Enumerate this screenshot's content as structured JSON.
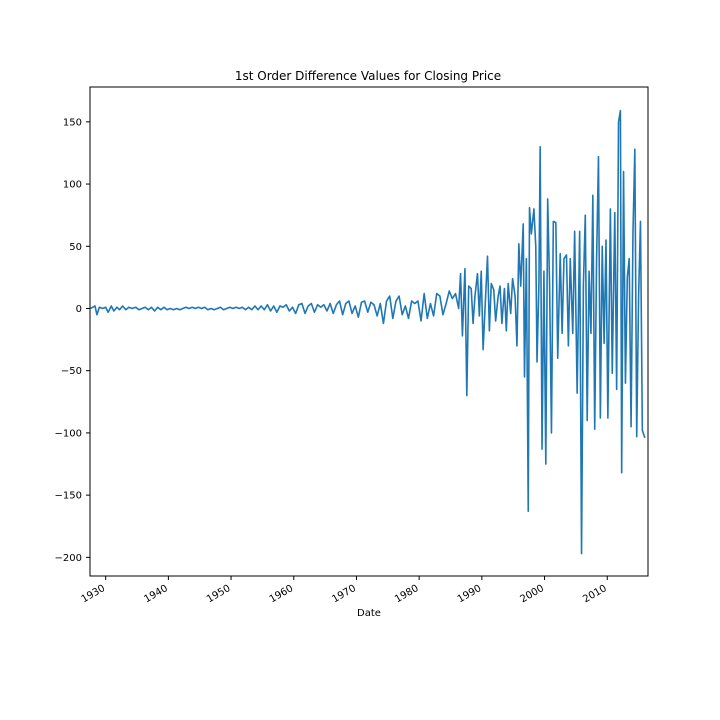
{
  "chart_data": {
    "type": "line",
    "title": "1st Order Difference Values for Closing Price",
    "xlabel": "Date",
    "ylabel": "",
    "xlim": [
      1927.5,
      2016.5
    ],
    "ylim": [
      -215,
      178
    ],
    "x_ticks": [
      1930,
      1940,
      1950,
      1960,
      1970,
      1980,
      1990,
      2000,
      2010
    ],
    "x_tick_labels": [
      "1930",
      "1940",
      "1950",
      "1960",
      "1970",
      "1980",
      "1990",
      "2000",
      "2010"
    ],
    "y_ticks": [
      150,
      100,
      50,
      0,
      -50,
      -100,
      -150,
      -200
    ],
    "y_tick_labels": [
      "150",
      "100",
      "50",
      "0",
      "−50",
      "−100",
      "−150",
      "−200"
    ],
    "grid": false,
    "color": "#1f77b4",
    "series": [
      {
        "name": "",
        "points": [
          [
            1927.6,
            0
          ],
          [
            1928.3,
            2
          ],
          [
            1928.6,
            -5
          ],
          [
            1929.0,
            1
          ],
          [
            1929.5,
            0
          ],
          [
            1930.0,
            1
          ],
          [
            1930.4,
            -3
          ],
          [
            1930.9,
            2
          ],
          [
            1931.3,
            -2
          ],
          [
            1931.8,
            1
          ],
          [
            1932.2,
            -1
          ],
          [
            1932.7,
            2
          ],
          [
            1933.2,
            -1
          ],
          [
            1933.7,
            1
          ],
          [
            1934.2,
            0
          ],
          [
            1934.8,
            1
          ],
          [
            1935.3,
            -1
          ],
          [
            1935.8,
            0
          ],
          [
            1936.3,
            1
          ],
          [
            1936.8,
            -1
          ],
          [
            1937.3,
            1
          ],
          [
            1937.8,
            -2
          ],
          [
            1938.3,
            1
          ],
          [
            1938.8,
            -1
          ],
          [
            1939.3,
            1
          ],
          [
            1939.8,
            -1
          ],
          [
            1940.3,
            0
          ],
          [
            1940.8,
            -1
          ],
          [
            1941.3,
            0
          ],
          [
            1941.8,
            -1
          ],
          [
            1942.3,
            0
          ],
          [
            1942.8,
            1
          ],
          [
            1943.3,
            0
          ],
          [
            1943.8,
            1
          ],
          [
            1944.3,
            0
          ],
          [
            1944.8,
            1
          ],
          [
            1945.3,
            0
          ],
          [
            1945.8,
            1
          ],
          [
            1946.3,
            -1
          ],
          [
            1946.8,
            0
          ],
          [
            1947.3,
            -1
          ],
          [
            1947.8,
            0
          ],
          [
            1948.3,
            1
          ],
          [
            1948.8,
            -1
          ],
          [
            1949.3,
            0
          ],
          [
            1949.8,
            1
          ],
          [
            1950.3,
            0
          ],
          [
            1950.8,
            1
          ],
          [
            1951.3,
            0
          ],
          [
            1951.8,
            1
          ],
          [
            1952.3,
            -1
          ],
          [
            1952.8,
            1
          ],
          [
            1953.3,
            -1
          ],
          [
            1953.8,
            2
          ],
          [
            1954.3,
            -1
          ],
          [
            1954.8,
            2
          ],
          [
            1955.3,
            -1
          ],
          [
            1955.8,
            3
          ],
          [
            1956.3,
            -2
          ],
          [
            1956.8,
            2
          ],
          [
            1957.3,
            -3
          ],
          [
            1957.8,
            2
          ],
          [
            1958.3,
            1
          ],
          [
            1958.8,
            3
          ],
          [
            1959.3,
            -2
          ],
          [
            1959.8,
            1
          ],
          [
            1960.3,
            -4
          ],
          [
            1960.8,
            3
          ],
          [
            1961.3,
            4
          ],
          [
            1961.8,
            -4
          ],
          [
            1962.3,
            2
          ],
          [
            1962.8,
            4
          ],
          [
            1963.3,
            -3
          ],
          [
            1963.8,
            3
          ],
          [
            1964.3,
            1
          ],
          [
            1964.8,
            3
          ],
          [
            1965.3,
            -2
          ],
          [
            1965.8,
            4
          ],
          [
            1966.3,
            -4
          ],
          [
            1966.8,
            3
          ],
          [
            1967.3,
            6
          ],
          [
            1967.8,
            -5
          ],
          [
            1968.3,
            4
          ],
          [
            1968.8,
            6
          ],
          [
            1969.3,
            -4
          ],
          [
            1969.8,
            2
          ],
          [
            1970.3,
            -7
          ],
          [
            1970.8,
            5
          ],
          [
            1971.3,
            6
          ],
          [
            1971.8,
            -3
          ],
          [
            1972.3,
            5
          ],
          [
            1972.8,
            3
          ],
          [
            1973.3,
            -6
          ],
          [
            1973.8,
            4
          ],
          [
            1974.3,
            -12
          ],
          [
            1974.8,
            6
          ],
          [
            1975.3,
            10
          ],
          [
            1975.8,
            -8
          ],
          [
            1976.3,
            6
          ],
          [
            1976.8,
            10
          ],
          [
            1977.3,
            -5
          ],
          [
            1977.8,
            2
          ],
          [
            1978.3,
            -8
          ],
          [
            1978.8,
            6
          ],
          [
            1979.3,
            4
          ],
          [
            1979.8,
            6
          ],
          [
            1980.3,
            -10
          ],
          [
            1980.8,
            12
          ],
          [
            1981.3,
            -8
          ],
          [
            1981.8,
            4
          ],
          [
            1982.3,
            -6
          ],
          [
            1982.8,
            12
          ],
          [
            1983.3,
            10
          ],
          [
            1983.8,
            -5
          ],
          [
            1984.3,
            4
          ],
          [
            1984.8,
            14
          ],
          [
            1985.3,
            8
          ],
          [
            1985.8,
            12
          ],
          [
            1986.3,
            0
          ],
          [
            1986.6,
            28
          ],
          [
            1986.9,
            -22
          ],
          [
            1987.3,
            32
          ],
          [
            1987.6,
            -70
          ],
          [
            1987.9,
            18
          ],
          [
            1988.3,
            16
          ],
          [
            1988.6,
            -12
          ],
          [
            1988.9,
            10
          ],
          [
            1989.3,
            28
          ],
          [
            1989.6,
            -6
          ],
          [
            1989.9,
            30
          ],
          [
            1990.2,
            -33
          ],
          [
            1990.6,
            10
          ],
          [
            1990.9,
            42
          ],
          [
            1991.2,
            -18
          ],
          [
            1991.5,
            20
          ],
          [
            1991.9,
            15
          ],
          [
            1992.2,
            -10
          ],
          [
            1992.6,
            10
          ],
          [
            1992.9,
            18
          ],
          [
            1993.2,
            -12
          ],
          [
            1993.6,
            16
          ],
          [
            1993.9,
            -18
          ],
          [
            1994.2,
            20
          ],
          [
            1994.6,
            -4
          ],
          [
            1994.9,
            24
          ],
          [
            1995.3,
            10
          ],
          [
            1995.6,
            -30
          ],
          [
            1995.9,
            52
          ],
          [
            1996.2,
            18
          ],
          [
            1996.6,
            68
          ],
          [
            1996.8,
            -55
          ],
          [
            1997.1,
            40
          ],
          [
            1997.4,
            -163
          ],
          [
            1997.6,
            81
          ],
          [
            1997.9,
            60
          ],
          [
            1998.3,
            80
          ],
          [
            1998.6,
            50
          ],
          [
            1998.8,
            -43
          ],
          [
            1999.1,
            20
          ],
          [
            1999.3,
            130
          ],
          [
            1999.6,
            -113
          ],
          [
            1999.9,
            30
          ],
          [
            2000.2,
            -125
          ],
          [
            2000.5,
            88
          ],
          [
            2000.8,
            20
          ],
          [
            2001.1,
            -100
          ],
          [
            2001.4,
            70
          ],
          [
            2001.8,
            69
          ],
          [
            2002.1,
            -40
          ],
          [
            2002.5,
            44
          ],
          [
            2002.8,
            -20
          ],
          [
            2003.1,
            40
          ],
          [
            2003.5,
            43
          ],
          [
            2003.8,
            -30
          ],
          [
            2004.1,
            40
          ],
          [
            2004.5,
            -20
          ],
          [
            2004.8,
            62
          ],
          [
            2005.2,
            -68
          ],
          [
            2005.6,
            62
          ],
          [
            2005.9,
            -197
          ],
          [
            2006.2,
            20
          ],
          [
            2006.5,
            75
          ],
          [
            2006.8,
            -90
          ],
          [
            2007.1,
            30
          ],
          [
            2007.4,
            -20
          ],
          [
            2007.7,
            91
          ],
          [
            2008.0,
            -97
          ],
          [
            2008.3,
            40
          ],
          [
            2008.6,
            122
          ],
          [
            2008.9,
            -88
          ],
          [
            2009.2,
            50
          ],
          [
            2009.5,
            -28
          ],
          [
            2009.8,
            55
          ],
          [
            2010.1,
            -88
          ],
          [
            2010.5,
            80
          ],
          [
            2010.8,
            -52
          ],
          [
            2011.2,
            77
          ],
          [
            2011.5,
            -65
          ],
          [
            2011.8,
            150
          ],
          [
            2012.1,
            159
          ],
          [
            2012.3,
            -132
          ],
          [
            2012.6,
            110
          ],
          [
            2012.9,
            -60
          ],
          [
            2013.2,
            25
          ],
          [
            2013.5,
            40
          ],
          [
            2013.8,
            -95
          ],
          [
            2014.1,
            60
          ],
          [
            2014.4,
            128
          ],
          [
            2014.7,
            -103
          ],
          [
            2015.0,
            10
          ],
          [
            2015.3,
            70
          ],
          [
            2015.6,
            -98
          ],
          [
            2016.0,
            -104
          ]
        ]
      }
    ]
  }
}
